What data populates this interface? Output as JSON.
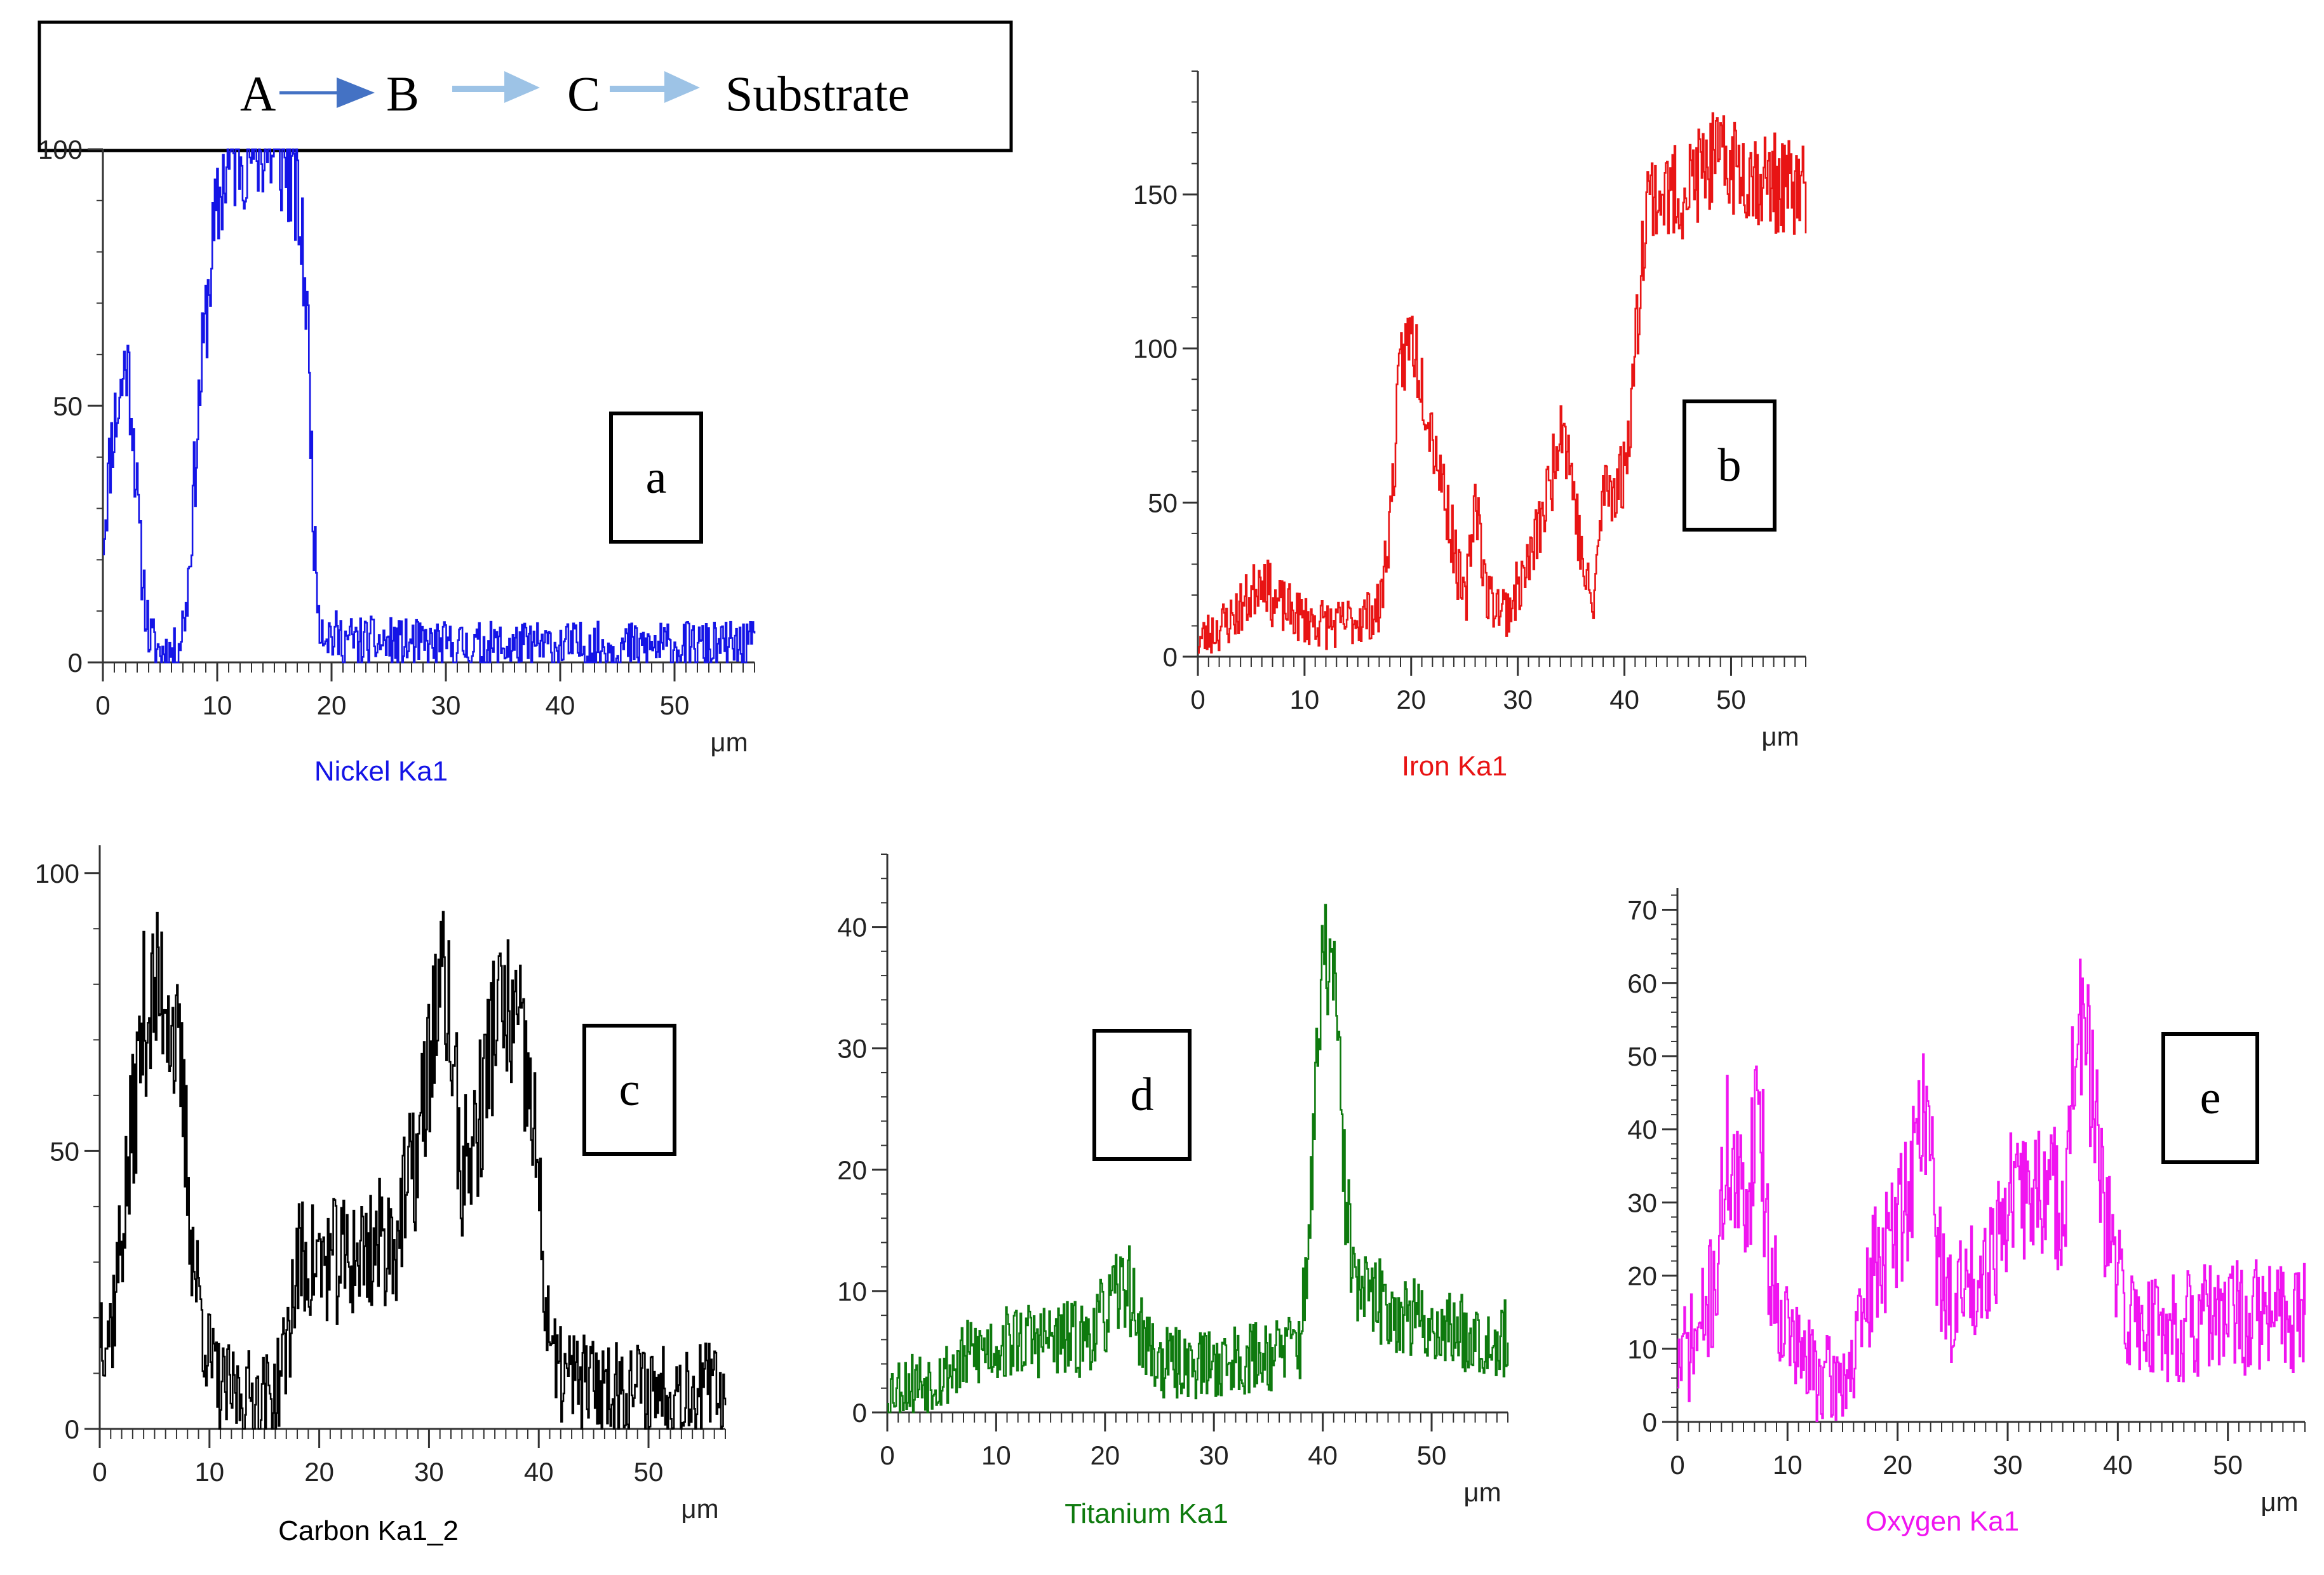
{
  "legend": {
    "labels": [
      "A",
      "B",
      "C",
      "Substrate"
    ],
    "arrow_colors": [
      "#4472C4",
      "#9DC3E6",
      "#9DC3E6"
    ]
  },
  "chart_data": [
    {
      "id": "a",
      "panel_label": "a",
      "type": "line",
      "title": "Nickel Ka1",
      "xlabel": "μm",
      "ylabel": "",
      "color": "#1414E6",
      "xlim": [
        0,
        57
      ],
      "ylim": [
        0,
        100
      ],
      "xticks": [
        0,
        10,
        20,
        30,
        40,
        50
      ],
      "yticks": [
        0,
        50,
        100
      ],
      "profile": [
        [
          0,
          25
        ],
        [
          0.8,
          45
        ],
        [
          1.5,
          52
        ],
        [
          2,
          60
        ],
        [
          2.5,
          50
        ],
        [
          3.2,
          22
        ],
        [
          4,
          5
        ],
        [
          5,
          2
        ],
        [
          6.5,
          2
        ],
        [
          7.3,
          12
        ],
        [
          8.5,
          55
        ],
        [
          9.5,
          80
        ],
        [
          10.5,
          95
        ],
        [
          12,
          100
        ],
        [
          14,
          100
        ],
        [
          16,
          97
        ],
        [
          17,
          90
        ],
        [
          17.8,
          70
        ],
        [
          18.5,
          20
        ],
        [
          19,
          8
        ],
        [
          20,
          5
        ],
        [
          22,
          4
        ],
        [
          30,
          3
        ],
        [
          40,
          3
        ],
        [
          50,
          3
        ],
        [
          57,
          3
        ]
      ],
      "noise": 8,
      "seed": 11
    },
    {
      "id": "b",
      "panel_label": "b",
      "type": "line",
      "title": "Iron Ka1",
      "xlabel": "μm",
      "ylabel": "",
      "color": "#E81414",
      "xlim": [
        0,
        57
      ],
      "ylim": [
        0,
        190
      ],
      "xticks": [
        0,
        10,
        20,
        30,
        40,
        50
      ],
      "yticks": [
        0,
        50,
        100,
        150
      ],
      "profile": [
        [
          0,
          5
        ],
        [
          3,
          12
        ],
        [
          5,
          20
        ],
        [
          6,
          28
        ],
        [
          7,
          18
        ],
        [
          10,
          12
        ],
        [
          13,
          10
        ],
        [
          17,
          15
        ],
        [
          18,
          45
        ],
        [
          19,
          95
        ],
        [
          20,
          105
        ],
        [
          21,
          90
        ],
        [
          23,
          55
        ],
        [
          25,
          15
        ],
        [
          26,
          55
        ],
        [
          27,
          20
        ],
        [
          29,
          15
        ],
        [
          31,
          30
        ],
        [
          33,
          55
        ],
        [
          34,
          80
        ],
        [
          35,
          60
        ],
        [
          36,
          30
        ],
        [
          37,
          15
        ],
        [
          38,
          55
        ],
        [
          39,
          55
        ],
        [
          40,
          60
        ],
        [
          41,
          100
        ],
        [
          42,
          150
        ],
        [
          45,
          150
        ],
        [
          48,
          160
        ],
        [
          50,
          160
        ],
        [
          53,
          155
        ],
        [
          57,
          150
        ]
      ],
      "noise": 12,
      "seed": 23
    },
    {
      "id": "c",
      "panel_label": "c",
      "type": "line",
      "title": "Carbon Ka1_2",
      "xlabel": "μm",
      "ylabel": "",
      "color": "#000000",
      "xlim": [
        0,
        57
      ],
      "ylim": [
        0,
        105
      ],
      "xticks": [
        0,
        10,
        20,
        30,
        40,
        50
      ],
      "yticks": [
        0,
        50,
        100
      ],
      "profile": [
        [
          0,
          20
        ],
        [
          1,
          18
        ],
        [
          2.5,
          45
        ],
        [
          4,
          75
        ],
        [
          6,
          80
        ],
        [
          7.5,
          60
        ],
        [
          8.5,
          30
        ],
        [
          10,
          12
        ],
        [
          11,
          7
        ],
        [
          14,
          6
        ],
        [
          16,
          6
        ],
        [
          17,
          15
        ],
        [
          18,
          30
        ],
        [
          22,
          30
        ],
        [
          27,
          35
        ],
        [
          29,
          50
        ],
        [
          30.5,
          75
        ],
        [
          31.5,
          80
        ],
        [
          33,
          45
        ],
        [
          34.5,
          55
        ],
        [
          36,
          75
        ],
        [
          38,
          72
        ],
        [
          39.5,
          55
        ],
        [
          40.5,
          25
        ],
        [
          41.5,
          10
        ],
        [
          45,
          8
        ],
        [
          57,
          7
        ]
      ],
      "noise": 12,
      "seed": 37
    },
    {
      "id": "d",
      "panel_label": "d",
      "type": "line",
      "title": "Titanium Ka1",
      "xlabel": "μm",
      "ylabel": "",
      "color": "#0E7A0E",
      "xlim": [
        0,
        57
      ],
      "ylim": [
        0,
        46
      ],
      "xticks": [
        0,
        10,
        20,
        30,
        40,
        50
      ],
      "yticks": [
        0,
        10,
        20,
        30,
        40
      ],
      "profile": [
        [
          0,
          2
        ],
        [
          5,
          3
        ],
        [
          8,
          5
        ],
        [
          12,
          6
        ],
        [
          18,
          6
        ],
        [
          20,
          8
        ],
        [
          22,
          11
        ],
        [
          23,
          7
        ],
        [
          25,
          4
        ],
        [
          30,
          4
        ],
        [
          36,
          5
        ],
        [
          38,
          6
        ],
        [
          39,
          20
        ],
        [
          40,
          38
        ],
        [
          41,
          36
        ],
        [
          42,
          18
        ],
        [
          43,
          10
        ],
        [
          50,
          7
        ],
        [
          57,
          6
        ]
      ],
      "noise": 4,
      "seed": 53
    },
    {
      "id": "e",
      "panel_label": "e",
      "type": "line",
      "title": "Oxygen Ka1",
      "xlabel": "μm",
      "ylabel": "",
      "color": "#F014F0",
      "xlim": [
        0,
        57
      ],
      "ylim": [
        0,
        73
      ],
      "xticks": [
        0,
        10,
        20,
        30,
        40,
        50
      ],
      "yticks": [
        0,
        10,
        20,
        30,
        40,
        50,
        60,
        70
      ],
      "profile": [
        [
          0,
          8
        ],
        [
          2,
          12
        ],
        [
          3.5,
          20
        ],
        [
          4.5,
          38
        ],
        [
          5.5,
          30
        ],
        [
          6.5,
          32
        ],
        [
          7.3,
          48
        ],
        [
          8.2,
          22
        ],
        [
          9.5,
          15
        ],
        [
          11,
          9
        ],
        [
          14,
          5
        ],
        [
          16,
          8
        ],
        [
          17,
          15
        ],
        [
          18,
          22
        ],
        [
          19.5,
          25
        ],
        [
          21,
          32
        ],
        [
          22.5,
          45
        ],
        [
          23.5,
          25
        ],
        [
          24.5,
          15
        ],
        [
          26,
          18
        ],
        [
          28,
          22
        ],
        [
          30,
          30
        ],
        [
          33,
          32
        ],
        [
          35,
          30
        ],
        [
          36.5,
          55
        ],
        [
          37.5,
          48
        ],
        [
          38.5,
          30
        ],
        [
          39.5,
          22
        ],
        [
          41,
          14
        ],
        [
          45,
          13
        ],
        [
          50,
          14
        ],
        [
          57,
          15
        ]
      ],
      "noise": 9,
      "seed": 71
    }
  ]
}
